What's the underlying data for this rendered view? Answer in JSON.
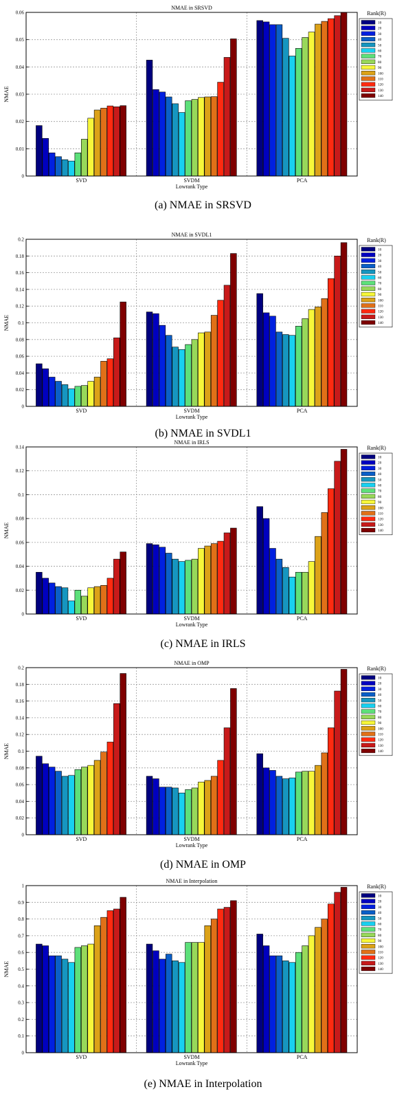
{
  "palette": [
    "#00007f",
    "#0000b5",
    "#0a2adf",
    "#1560c8",
    "#1f8fbf",
    "#19c6e0",
    "#55e8e8",
    "#6fdd8a",
    "#a8e05a",
    "#f5f514",
    "#ffff40",
    "#e0a418",
    "#e87f18",
    "#e84a10",
    "#ff1a1a",
    "#d22010",
    "#c01616",
    "#7f0000"
  ],
  "legend": {
    "title": "Rank(R)",
    "labels": [
      "10",
      "20",
      "30",
      "40",
      "50",
      "60",
      "70",
      "80",
      "90",
      "100",
      "110",
      "120",
      "130",
      "140"
    ],
    "colors": [
      "#00007f",
      "#0000bf",
      "#0020e0",
      "#0a5fc8",
      "#1696c0",
      "#18d0f0",
      "#5de07a",
      "#98d85a",
      "#f7f73a",
      "#dca218",
      "#e07018",
      "#ff2a10",
      "#c81a1a",
      "#7f0000"
    ]
  },
  "chart_data": [
    {
      "type": "bar",
      "title": "NMAE in SRSVD",
      "caption": "(a) NMAE in SRSVD",
      "xlabel": "Lowrank Type",
      "ylabel": "NMAE",
      "categories": [
        "SVD",
        "SVDM",
        "PCA"
      ],
      "ylim": [
        0,
        0.06
      ],
      "yticks": [
        "0",
        "0.01",
        "0.02",
        "0.03",
        "0.04",
        "0.05",
        "0.06"
      ],
      "grid": true,
      "legend_position": "right",
      "series": [
        {
          "name": "10",
          "values": [
            0.0185,
            0.0425,
            0.057
          ]
        },
        {
          "name": "20",
          "values": [
            0.0138,
            0.0317,
            0.0565
          ]
        },
        {
          "name": "30",
          "values": [
            0.0085,
            0.0308,
            0.0555
          ]
        },
        {
          "name": "40",
          "values": [
            0.0071,
            0.029,
            0.0555
          ]
        },
        {
          "name": "50",
          "values": [
            0.006,
            0.0265,
            0.0505
          ]
        },
        {
          "name": "60",
          "values": [
            0.0055,
            0.0233,
            0.044
          ]
        },
        {
          "name": "70",
          "values": [
            0.0085,
            0.0276,
            0.0468
          ]
        },
        {
          "name": "80",
          "values": [
            0.0135,
            0.0281,
            0.0508
          ]
        },
        {
          "name": "90",
          "values": [
            0.0212,
            0.0288,
            0.0528
          ]
        },
        {
          "name": "100",
          "values": [
            0.0242,
            0.029,
            0.0557
          ]
        },
        {
          "name": "110",
          "values": [
            0.0249,
            0.0291,
            0.0567
          ]
        },
        {
          "name": "120",
          "values": [
            0.0257,
            0.0344,
            0.0577
          ]
        },
        {
          "name": "130",
          "values": [
            0.0254,
            0.0435,
            0.0588
          ]
        },
        {
          "name": "140",
          "values": [
            0.0258,
            0.0503,
            0.06
          ]
        }
      ]
    },
    {
      "type": "bar",
      "title": "NMAE in SVDL1",
      "caption": "(b) NMAE in SVDL1",
      "xlabel": "Lowrank Type",
      "ylabel": "NMAE",
      "categories": [
        "SVD",
        "SVDM",
        "PCA"
      ],
      "ylim": [
        0,
        0.2
      ],
      "yticks": [
        "0",
        "0.02",
        "0.04",
        "0.06",
        "0.08",
        "0.1",
        "0.12",
        "0.14",
        "0.16",
        "0.18",
        "0.2"
      ],
      "grid": true,
      "legend_position": "right",
      "series": [
        {
          "name": "10",
          "values": [
            0.051,
            0.113,
            0.135
          ]
        },
        {
          "name": "20",
          "values": [
            0.045,
            0.111,
            0.112
          ]
        },
        {
          "name": "30",
          "values": [
            0.035,
            0.097,
            0.108
          ]
        },
        {
          "name": "40",
          "values": [
            0.03,
            0.085,
            0.089
          ]
        },
        {
          "name": "50",
          "values": [
            0.026,
            0.071,
            0.086
          ]
        },
        {
          "name": "60",
          "values": [
            0.021,
            0.068,
            0.085
          ]
        },
        {
          "name": "70",
          "values": [
            0.024,
            0.074,
            0.096
          ]
        },
        {
          "name": "80",
          "values": [
            0.025,
            0.08,
            0.105
          ]
        },
        {
          "name": "90",
          "values": [
            0.03,
            0.088,
            0.116
          ]
        },
        {
          "name": "100",
          "values": [
            0.035,
            0.089,
            0.119
          ]
        },
        {
          "name": "110",
          "values": [
            0.054,
            0.109,
            0.129
          ]
        },
        {
          "name": "120",
          "values": [
            0.057,
            0.127,
            0.153
          ]
        },
        {
          "name": "130",
          "values": [
            0.082,
            0.145,
            0.18
          ]
        },
        {
          "name": "140",
          "values": [
            0.125,
            0.183,
            0.196
          ]
        }
      ]
    },
    {
      "type": "bar",
      "title": "NMAE in IRLS",
      "caption": "(c) NMAE in IRLS",
      "xlabel": "Lowrank Type",
      "ylabel": "NMAE",
      "categories": [
        "SVD",
        "SVDM",
        "PCA"
      ],
      "ylim": [
        0,
        0.14
      ],
      "yticks": [
        "0",
        "0.02",
        "0.04",
        "0.06",
        "0.08",
        "0.1",
        "0.12",
        "0.14"
      ],
      "grid": true,
      "legend_position": "right",
      "series": [
        {
          "name": "10",
          "values": [
            0.035,
            0.059,
            0.09
          ]
        },
        {
          "name": "20",
          "values": [
            0.03,
            0.058,
            0.08
          ]
        },
        {
          "name": "30",
          "values": [
            0.026,
            0.056,
            0.055
          ]
        },
        {
          "name": "40",
          "values": [
            0.023,
            0.051,
            0.046
          ]
        },
        {
          "name": "50",
          "values": [
            0.022,
            0.046,
            0.039
          ]
        },
        {
          "name": "60",
          "values": [
            0.011,
            0.044,
            0.031
          ]
        },
        {
          "name": "70",
          "values": [
            0.02,
            0.045,
            0.035
          ]
        },
        {
          "name": "80",
          "values": [
            0.015,
            0.046,
            0.035
          ]
        },
        {
          "name": "90",
          "values": [
            0.022,
            0.055,
            0.044
          ]
        },
        {
          "name": "100",
          "values": [
            0.023,
            0.057,
            0.065
          ]
        },
        {
          "name": "110",
          "values": [
            0.024,
            0.059,
            0.085
          ]
        },
        {
          "name": "120",
          "values": [
            0.03,
            0.061,
            0.105
          ]
        },
        {
          "name": "130",
          "values": [
            0.046,
            0.068,
            0.128
          ]
        },
        {
          "name": "140",
          "values": [
            0.052,
            0.072,
            0.138
          ]
        }
      ]
    },
    {
      "type": "bar",
      "title": "NMAE in OMP",
      "caption": "(d) NMAE in OMP",
      "xlabel": "Lowrank Type",
      "ylabel": "NMAE",
      "categories": [
        "SVD",
        "SVDM",
        "PCA"
      ],
      "ylim": [
        0,
        0.2
      ],
      "yticks": [
        "0",
        "0.02",
        "0.04",
        "0.06",
        "0.08",
        "0.1",
        "0.12",
        "0.14",
        "0.16",
        "0.18",
        "0.2"
      ],
      "grid": true,
      "legend_position": "right",
      "series": [
        {
          "name": "10",
          "values": [
            0.094,
            0.07,
            0.097
          ]
        },
        {
          "name": "20",
          "values": [
            0.085,
            0.067,
            0.08
          ]
        },
        {
          "name": "30",
          "values": [
            0.081,
            0.057,
            0.077
          ]
        },
        {
          "name": "40",
          "values": [
            0.076,
            0.057,
            0.07
          ]
        },
        {
          "name": "50",
          "values": [
            0.07,
            0.056,
            0.067
          ]
        },
        {
          "name": "60",
          "values": [
            0.071,
            0.05,
            0.068
          ]
        },
        {
          "name": "70",
          "values": [
            0.078,
            0.054,
            0.075
          ]
        },
        {
          "name": "80",
          "values": [
            0.081,
            0.056,
            0.076
          ]
        },
        {
          "name": "90",
          "values": [
            0.083,
            0.063,
            0.076
          ]
        },
        {
          "name": "100",
          "values": [
            0.089,
            0.065,
            0.083
          ]
        },
        {
          "name": "110",
          "values": [
            0.099,
            0.07,
            0.098
          ]
        },
        {
          "name": "120",
          "values": [
            0.111,
            0.089,
            0.128
          ]
        },
        {
          "name": "130",
          "values": [
            0.157,
            0.128,
            0.172
          ]
        },
        {
          "name": "140",
          "values": [
            0.193,
            0.175,
            0.198
          ]
        }
      ]
    },
    {
      "type": "bar",
      "title": "NMAE in Interpolation",
      "caption": "(e) NMAE in Interpolation",
      "xlabel": "Lowrank Type",
      "ylabel": "NMAE",
      "categories": [
        "SVD",
        "SVDM",
        "PCA"
      ],
      "ylim": [
        0,
        1
      ],
      "yticks": [
        "0",
        "0.1",
        "0.2",
        "0.3",
        "0.4",
        "0.5",
        "0.6",
        "0.7",
        "0.8",
        "0.9",
        "1"
      ],
      "grid": true,
      "legend_position": "right",
      "series": [
        {
          "name": "10",
          "values": [
            0.65,
            0.65,
            0.71
          ]
        },
        {
          "name": "20",
          "values": [
            0.64,
            0.61,
            0.64
          ]
        },
        {
          "name": "30",
          "values": [
            0.58,
            0.56,
            0.58
          ]
        },
        {
          "name": "40",
          "values": [
            0.58,
            0.59,
            0.58
          ]
        },
        {
          "name": "50",
          "values": [
            0.56,
            0.55,
            0.55
          ]
        },
        {
          "name": "60",
          "values": [
            0.54,
            0.54,
            0.54
          ]
        },
        {
          "name": "70",
          "values": [
            0.63,
            0.66,
            0.6
          ]
        },
        {
          "name": "80",
          "values": [
            0.64,
            0.66,
            0.64
          ]
        },
        {
          "name": "90",
          "values": [
            0.65,
            0.66,
            0.7
          ]
        },
        {
          "name": "100",
          "values": [
            0.76,
            0.76,
            0.75
          ]
        },
        {
          "name": "110",
          "values": [
            0.81,
            0.8,
            0.8
          ]
        },
        {
          "name": "120",
          "values": [
            0.85,
            0.86,
            0.89
          ]
        },
        {
          "name": "130",
          "values": [
            0.86,
            0.87,
            0.96
          ]
        },
        {
          "name": "140",
          "values": [
            0.93,
            0.91,
            0.99
          ]
        }
      ]
    }
  ]
}
